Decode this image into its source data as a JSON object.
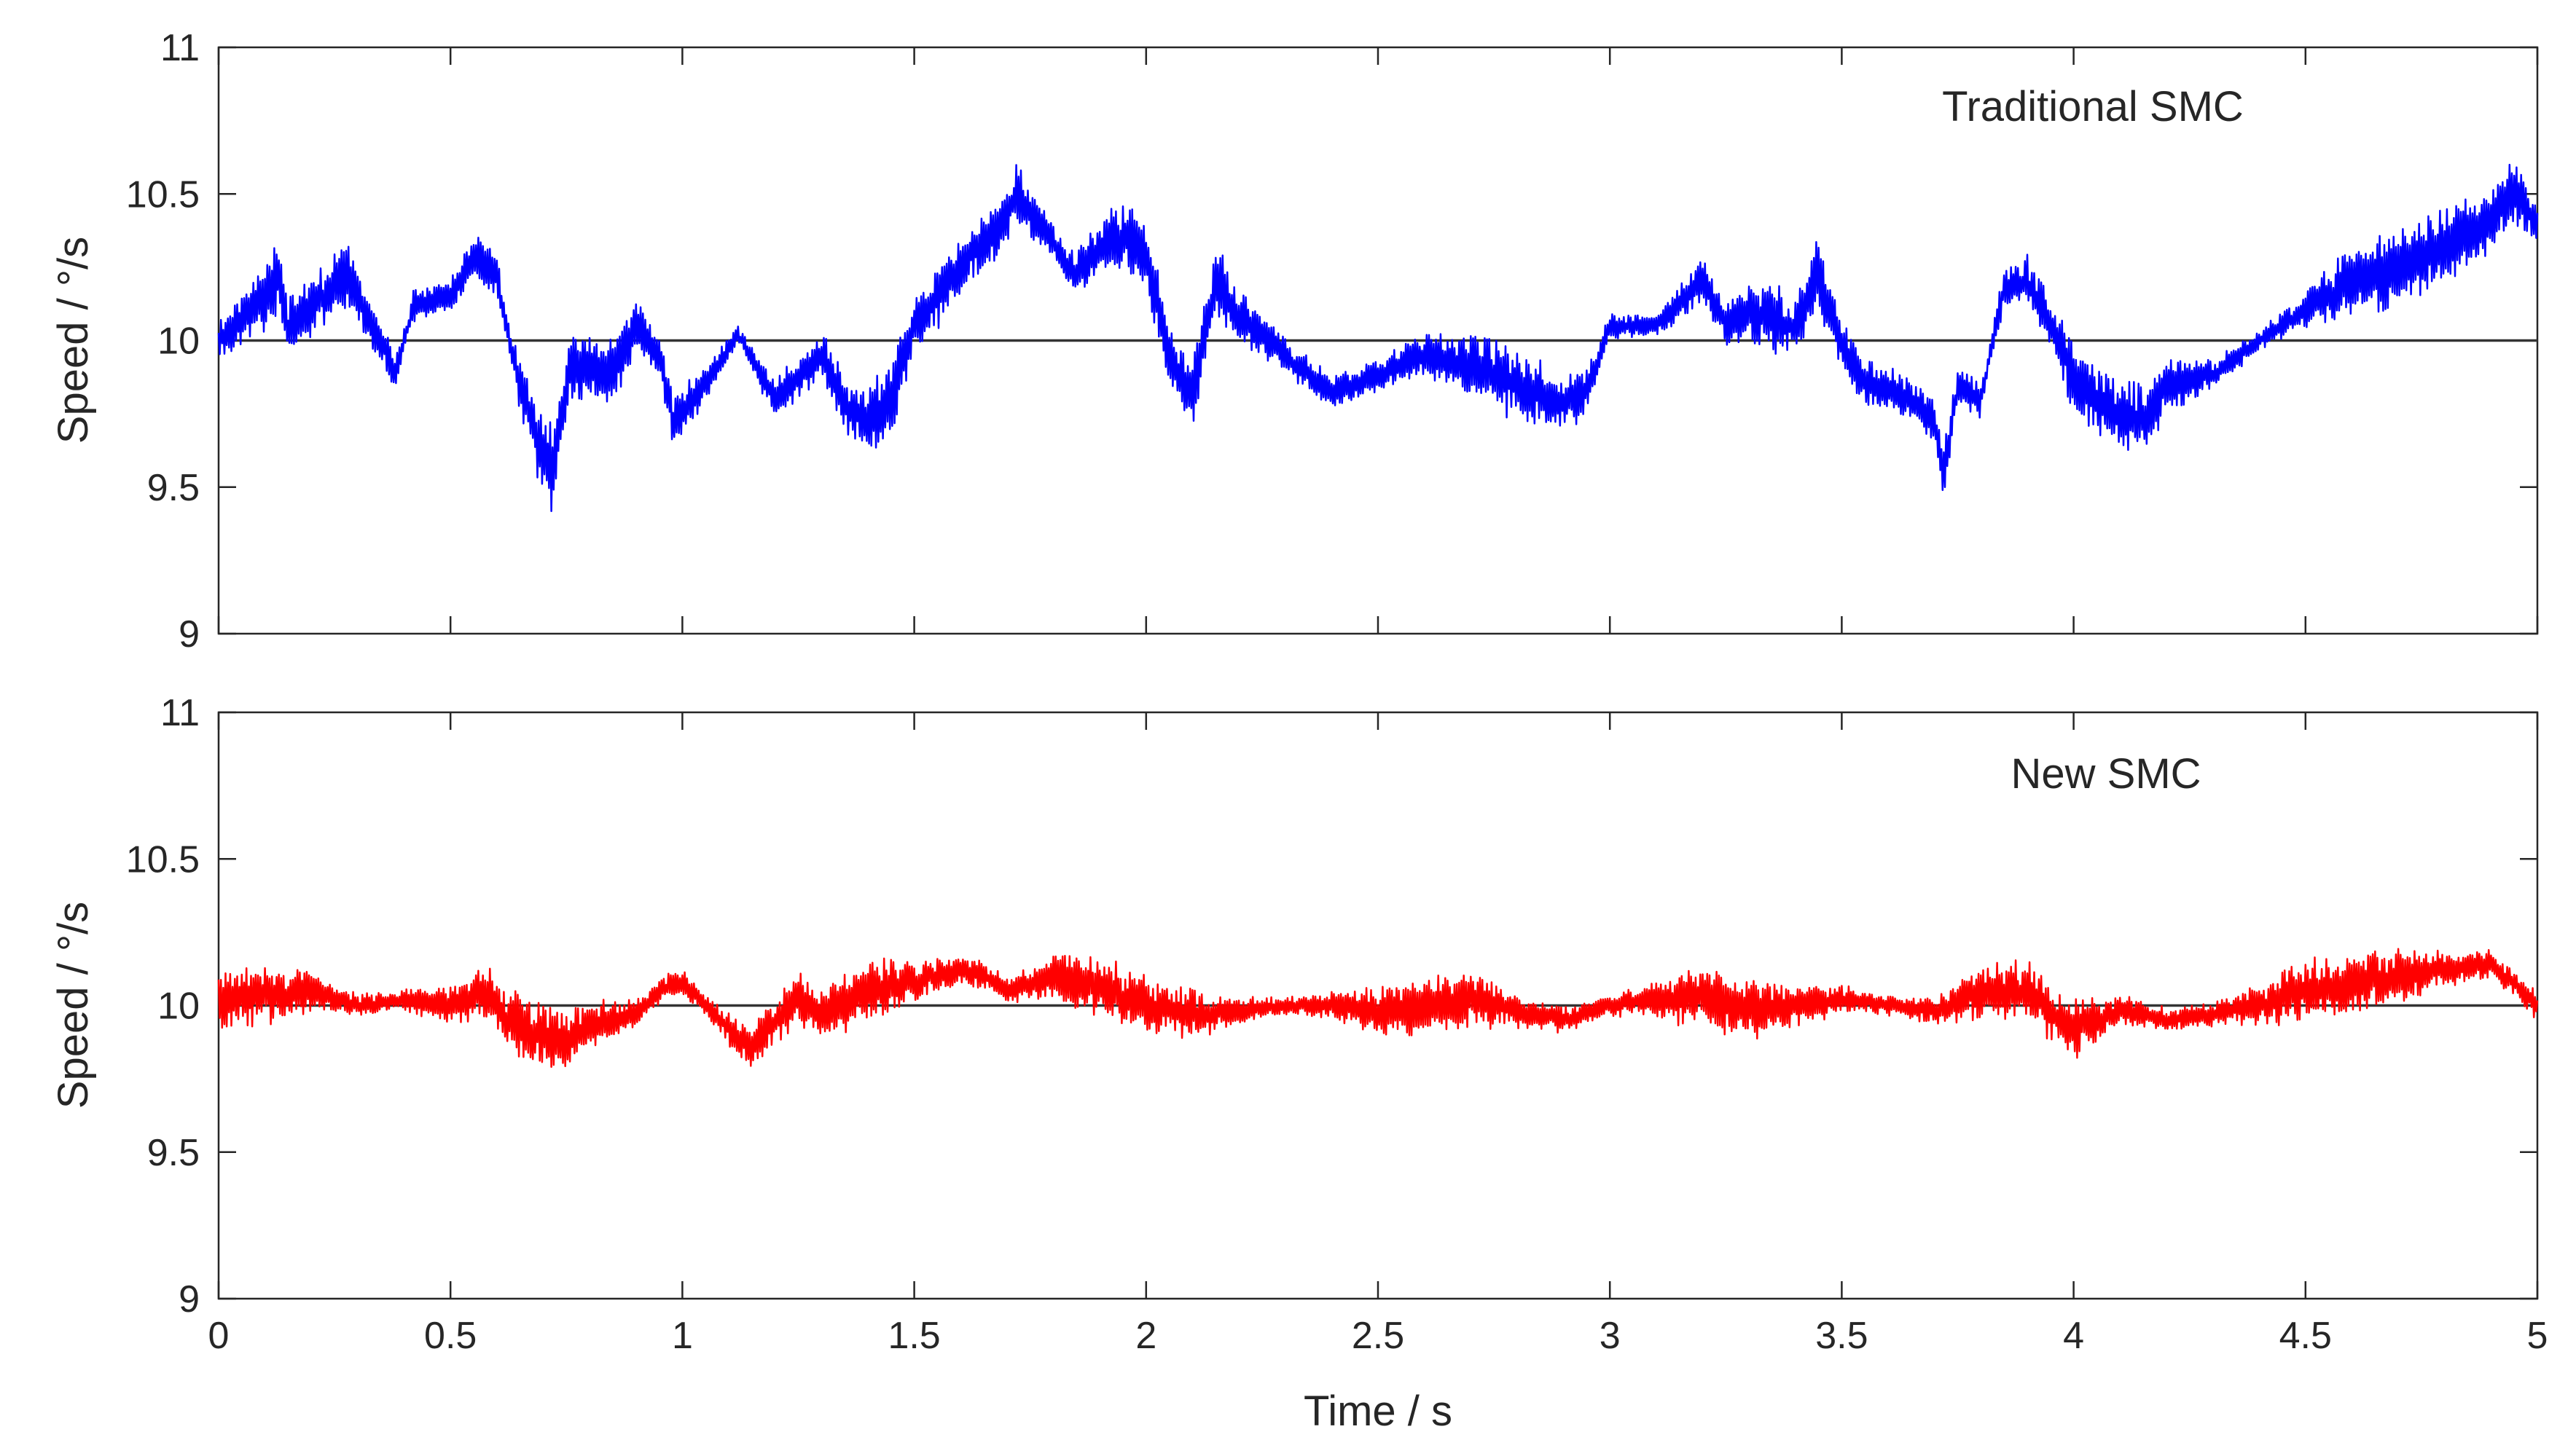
{
  "chart_data": [
    {
      "type": "line",
      "title": "",
      "annotation": "Traditional SMC",
      "xlabel": "",
      "ylabel": "Speed / °/s",
      "xlim": [
        0,
        5
      ],
      "ylim": [
        9,
        11
      ],
      "xticks": [
        0,
        0.5,
        1,
        1.5,
        2,
        2.5,
        3,
        3.5,
        4,
        4.5,
        5
      ],
      "yticks": [
        9,
        9.5,
        10,
        10.5,
        11
      ],
      "ytick_labels": [
        "9",
        "9.5",
        "10",
        "10.5",
        "11"
      ],
      "reference": {
        "name": "reference",
        "value": 10,
        "color": "#333333"
      },
      "series": [
        {
          "name": "Traditional SMC",
          "color": "#0000ff",
          "x": [
            0,
            0.05,
            0.1,
            0.13,
            0.15,
            0.2,
            0.28,
            0.32,
            0.37,
            0.38,
            0.42,
            0.5,
            0.55,
            0.6,
            0.63,
            0.65,
            0.7,
            0.72,
            0.76,
            0.8,
            0.85,
            0.9,
            0.95,
            0.98,
            1.05,
            1.12,
            1.2,
            1.3,
            1.35,
            1.4,
            1.45,
            1.5,
            1.6,
            1.7,
            1.72,
            1.8,
            1.85,
            1.9,
            1.95,
            2.0,
            2.05,
            2.1,
            2.15,
            2.2,
            2.3,
            2.4,
            2.5,
            2.6,
            2.7,
            2.8,
            2.9,
            2.95,
            3.0,
            3.1,
            3.2,
            3.25,
            3.3,
            3.4,
            3.45,
            3.5,
            3.55,
            3.6,
            3.65,
            3.7,
            3.72,
            3.75,
            3.8,
            3.85,
            3.9,
            3.95,
            4.0,
            4.05,
            4.1,
            4.15,
            4.2,
            4.3,
            4.4,
            4.5,
            4.6,
            4.7,
            4.8,
            4.9,
            4.95,
            5.0
          ],
          "y": [
            10.0,
            10.08,
            10.16,
            10.22,
            10.05,
            10.12,
            10.22,
            10.08,
            9.93,
            9.88,
            10.12,
            10.15,
            10.3,
            10.22,
            9.98,
            9.85,
            9.6,
            9.55,
            9.92,
            9.9,
            9.88,
            10.05,
            9.95,
            9.72,
            9.85,
            10.02,
            9.8,
            9.95,
            9.78,
            9.72,
            9.8,
            10.05,
            10.25,
            10.42,
            10.5,
            10.33,
            10.22,
            10.32,
            10.35,
            10.3,
            9.95,
            9.82,
            10.2,
            10.08,
            9.95,
            9.82,
            9.88,
            9.95,
            9.92,
            9.85,
            9.78,
            9.82,
            10.05,
            10.05,
            10.2,
            10.05,
            10.1,
            10.05,
            10.22,
            9.98,
            9.85,
            9.83,
            9.8,
            9.72,
            9.55,
            9.85,
            9.8,
            10.18,
            10.2,
            10.05,
            9.88,
            9.8,
            9.75,
            9.72,
            9.85,
            9.88,
            10.0,
            10.1,
            10.2,
            10.25,
            10.32,
            10.4,
            10.52,
            10.38
          ]
        }
      ]
    },
    {
      "type": "line",
      "title": "",
      "annotation": "New SMC",
      "xlabel": "Time / s",
      "ylabel": "Speed / °/s",
      "xlim": [
        0,
        5
      ],
      "ylim": [
        9,
        11
      ],
      "xticks": [
        0,
        0.5,
        1,
        1.5,
        2,
        2.5,
        3,
        3.5,
        4,
        4.5,
        5
      ],
      "xtick_labels": [
        "0",
        "0.5",
        "1",
        "1.5",
        "2",
        "2.5",
        "3",
        "3.5",
        "4",
        "4.5",
        "5"
      ],
      "yticks": [
        9,
        9.5,
        10,
        10.5,
        11
      ],
      "ytick_labels": [
        "9",
        "9.5",
        "10",
        "10.5",
        "11"
      ],
      "reference": {
        "name": "reference",
        "value": 10,
        "color": "#333333"
      },
      "series": [
        {
          "name": "New SMC",
          "color": "#ff0000",
          "x": [
            0,
            0.1,
            0.2,
            0.3,
            0.4,
            0.5,
            0.58,
            0.62,
            0.7,
            0.75,
            0.8,
            0.9,
            0.95,
            1.0,
            1.05,
            1.1,
            1.15,
            1.2,
            1.25,
            1.3,
            1.4,
            1.5,
            1.6,
            1.65,
            1.7,
            1.8,
            1.9,
            2.0,
            2.1,
            2.2,
            2.3,
            2.4,
            2.5,
            2.6,
            2.7,
            2.8,
            2.9,
            3.0,
            3.1,
            3.2,
            3.3,
            3.4,
            3.5,
            3.6,
            3.7,
            3.8,
            3.9,
            4.0,
            4.1,
            4.2,
            4.3,
            4.4,
            4.5,
            4.6,
            4.7,
            4.8,
            4.9,
            5.0
          ],
          "y": [
            10.02,
            10.03,
            10.05,
            10.0,
            10.02,
            10.0,
            10.05,
            9.95,
            9.9,
            9.88,
            9.93,
            9.97,
            10.05,
            10.08,
            10.0,
            9.92,
            9.85,
            9.95,
            10.02,
            9.98,
            10.05,
            10.08,
            10.12,
            10.1,
            10.05,
            10.1,
            10.06,
            10.0,
            9.97,
            9.98,
            10.0,
            10.0,
            9.98,
            10.0,
            10.02,
            9.98,
            9.95,
            10.0,
            10.02,
            10.03,
            9.98,
            10.0,
            10.02,
            10.0,
            9.98,
            10.05,
            10.05,
            9.92,
            9.98,
            9.95,
            9.97,
            10.0,
            10.05,
            10.07,
            10.1,
            10.12,
            10.14,
            10.0
          ]
        }
      ]
    }
  ]
}
